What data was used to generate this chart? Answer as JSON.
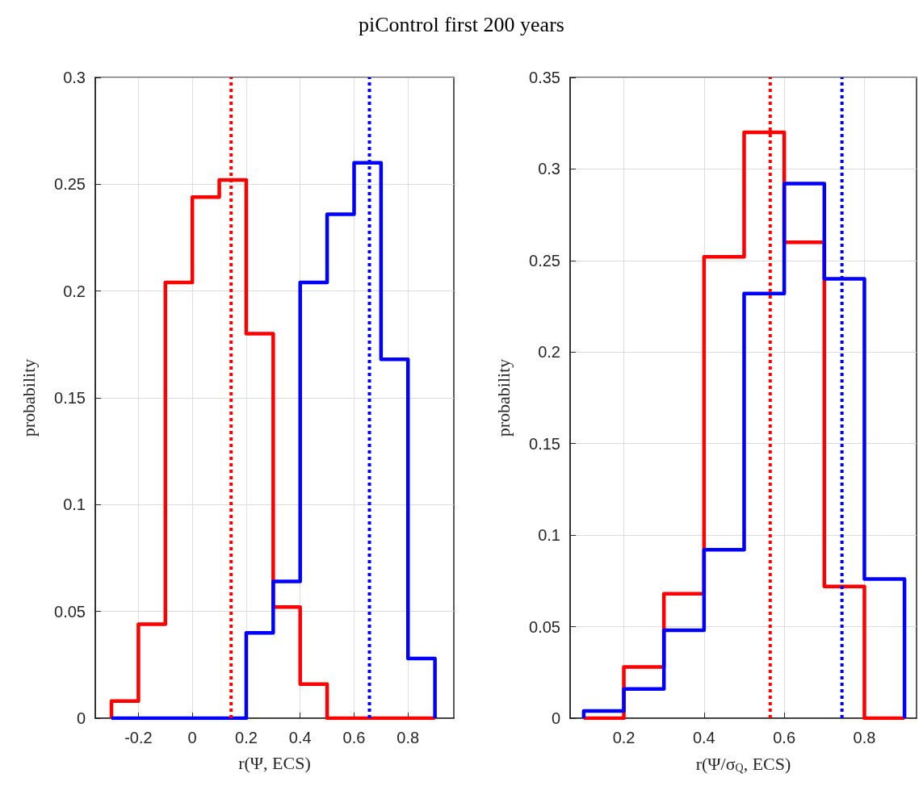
{
  "chart_data": [
    {
      "type": "histogram",
      "title": "piControl first 200 years",
      "xlabel": "r(Ψ, ECS)",
      "ylabel": "probability",
      "bins": [
        -0.3,
        -0.2,
        -0.1,
        0,
        0.1,
        0.2,
        0.3,
        0.4,
        0.5,
        0.6,
        0.7,
        0.8,
        0.9
      ],
      "series": [
        {
          "color": "#ff0000",
          "values": [
            0.008,
            0.044,
            0.204,
            0.244,
            0.252,
            0.18,
            0.052,
            0.016,
            0,
            0,
            0,
            0
          ]
        },
        {
          "color": "#0000ff",
          "values": [
            0,
            0,
            0,
            0,
            0,
            0.04,
            0.064,
            0.204,
            0.236,
            0.26,
            0.168,
            0.028
          ]
        }
      ],
      "ref_lines": [
        {
          "axis": "x",
          "value": 0.144,
          "color": "#ff0000",
          "line_style": "dotted"
        },
        {
          "axis": "x",
          "value": 0.657,
          "color": "#0000ff",
          "line_style": "dotted"
        }
      ],
      "xlim": [
        -0.36,
        0.97
      ],
      "xticks": [
        -0.2,
        0,
        0.2,
        0.4,
        0.6,
        0.8
      ],
      "ylim": [
        0,
        0.3
      ],
      "yticks": [
        0,
        0.05,
        0.1,
        0.15,
        0.2,
        0.25,
        0.3
      ],
      "grid": true,
      "marker": "none",
      "line_style": "solid"
    },
    {
      "type": "histogram",
      "xlabel": "r(Ψ/σ$_{Q}$, ECS)",
      "ylabel": "probability",
      "bins": [
        0.1,
        0.2,
        0.3,
        0.4,
        0.5,
        0.6,
        0.7,
        0.8,
        0.9
      ],
      "series": [
        {
          "color": "#ff0000",
          "values": [
            0,
            0.028,
            0.068,
            0.252,
            0.32,
            0.26,
            0.072,
            0
          ]
        },
        {
          "color": "#0000ff",
          "values": [
            0.004,
            0.016,
            0.048,
            0.092,
            0.232,
            0.292,
            0.24,
            0.076
          ]
        }
      ],
      "ref_lines": [
        {
          "axis": "x",
          "value": 0.565,
          "color": "#ff0000",
          "line_style": "dotted"
        },
        {
          "axis": "x",
          "value": 0.744,
          "color": "#0000ff",
          "line_style": "dotted"
        }
      ],
      "xlim": [
        0.066,
        0.93
      ],
      "xticks": [
        0.2,
        0.4,
        0.6,
        0.8
      ],
      "ylim": [
        0,
        0.35
      ],
      "yticks": [
        0,
        0.05,
        0.1,
        0.15,
        0.2,
        0.25,
        0.3,
        0.35
      ],
      "grid": true,
      "marker": "none",
      "line_style": "solid"
    }
  ]
}
